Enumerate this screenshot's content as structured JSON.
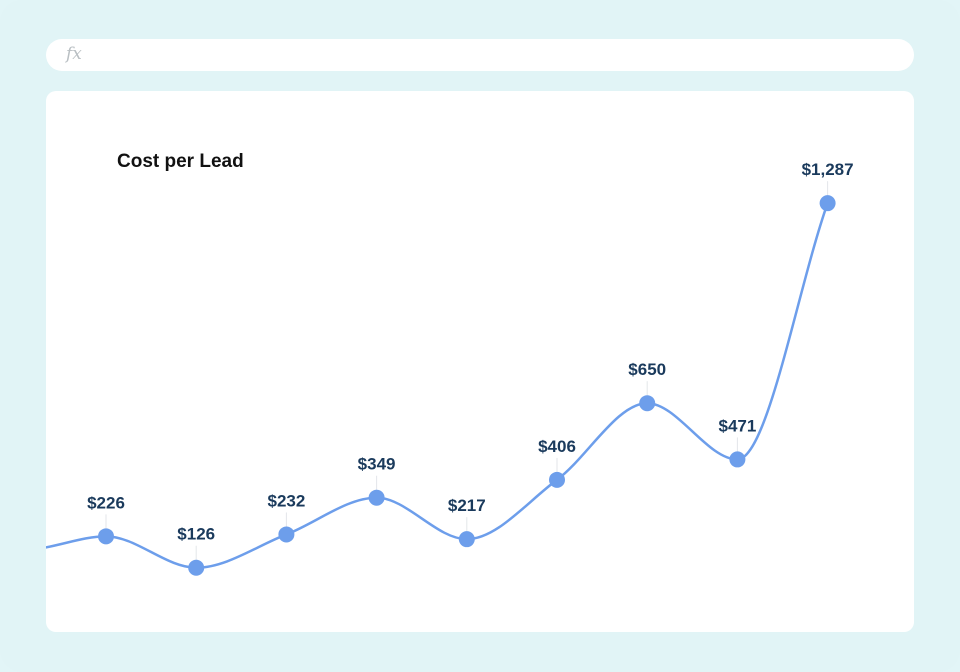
{
  "formula_bar": {
    "icon": "fx-icon",
    "label": "fx"
  },
  "chart_data": {
    "type": "line",
    "title": "Cost per Lead",
    "xlabel": "",
    "ylabel": "",
    "grid": false,
    "legend": "none",
    "ylim": [
      0,
      1450
    ],
    "points": [
      {
        "value": 226,
        "label": "$226"
      },
      {
        "value": 126,
        "label": "$126"
      },
      {
        "value": 232,
        "label": "$232"
      },
      {
        "value": 349,
        "label": "$349"
      },
      {
        "value": 217,
        "label": "$217"
      },
      {
        "value": 406,
        "label": "$406"
      },
      {
        "value": 650,
        "label": "$650"
      },
      {
        "value": 471,
        "label": "$471"
      },
      {
        "value": 1287,
        "label": "$1,287"
      }
    ],
    "colors": {
      "line": "#6d9eeb",
      "marker": "#6d9eeb",
      "label": "#1a3a5c"
    }
  }
}
